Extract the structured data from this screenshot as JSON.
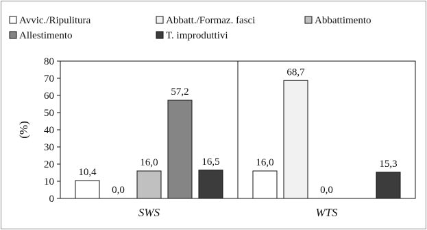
{
  "chart_data": {
    "type": "bar",
    "title": "",
    "xlabel": "",
    "ylabel": "(%)",
    "ylim": [
      0,
      80
    ],
    "yticks": [
      0,
      10,
      20,
      30,
      40,
      50,
      60,
      70,
      80
    ],
    "grid": false,
    "legend": "top",
    "groups": [
      "SWS",
      "WTS"
    ],
    "series": [
      {
        "name": "Avvic./Ripulitura",
        "color": "#ffffff",
        "values": [
          10.4,
          16.0
        ],
        "labels": [
          "10,4",
          "16,0"
        ]
      },
      {
        "name": "Abbatt./Formaz. fasci",
        "color": "#f1f1f1",
        "values": [
          0.0,
          68.7
        ],
        "labels": [
          "0,0",
          "68,7"
        ]
      },
      {
        "name": "Abbattimento",
        "color": "#c0c0c0",
        "values": [
          16.0,
          0.0
        ],
        "labels": [
          "16,0",
          "0,0"
        ]
      },
      {
        "name": "Allestimento",
        "color": "#858585",
        "values": [
          57.2,
          0.0
        ],
        "labels": [
          "57,2",
          ""
        ]
      },
      {
        "name": "T. improduttivi",
        "color": "#3c3c3c",
        "values": [
          16.5,
          15.3
        ],
        "labels": [
          "16,5",
          "15,3"
        ]
      }
    ]
  }
}
